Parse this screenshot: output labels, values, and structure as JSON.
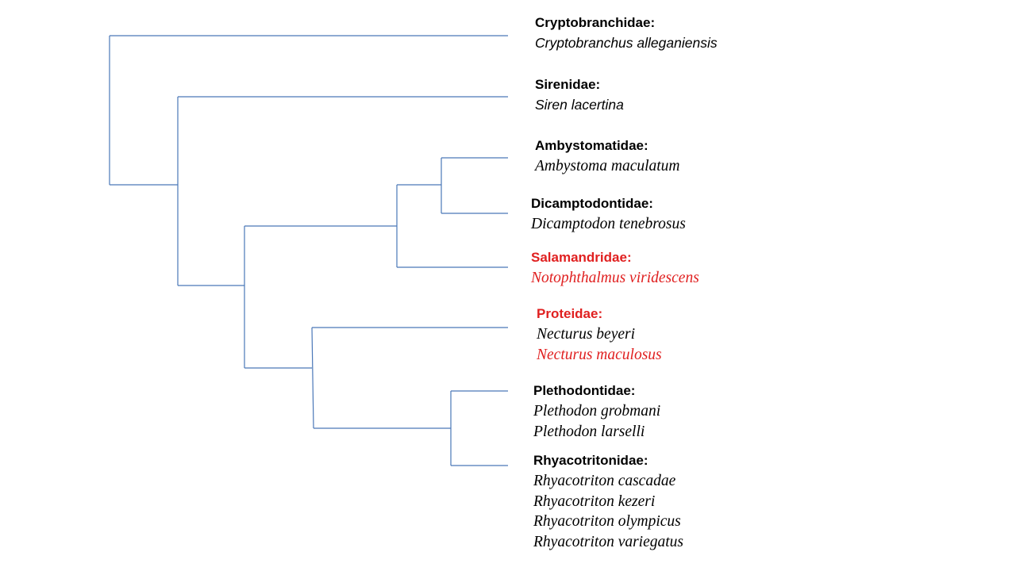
{
  "colors": {
    "branch": "#4a77b8",
    "text": "#000000",
    "highlight": "#e02020"
  },
  "taxa": [
    {
      "family": "Cryptobranchidae:",
      "family_highlight": false,
      "species": [
        {
          "name": "Cryptobranchus alleganiensis",
          "highlight": false
        }
      ]
    },
    {
      "family": "Sirenidae:",
      "family_highlight": false,
      "species": [
        {
          "name": "Siren lacertina",
          "highlight": false
        }
      ]
    },
    {
      "family": "Ambystomatidae:",
      "family_highlight": false,
      "species": [
        {
          "name": "Ambystoma maculatum",
          "highlight": false
        }
      ]
    },
    {
      "family": "Dicamptodontidae:",
      "family_highlight": false,
      "species": [
        {
          "name": "Dicamptodon tenebrosus",
          "highlight": false
        }
      ]
    },
    {
      "family": "Salamandridae:",
      "family_highlight": true,
      "species": [
        {
          "name": "Notophthalmus viridescens",
          "highlight": true
        }
      ]
    },
    {
      "family": "Proteidae:",
      "family_highlight": true,
      "species": [
        {
          "name": "Necturus beyeri",
          "highlight": false
        },
        {
          "name": "Necturus maculosus",
          "highlight": true
        }
      ]
    },
    {
      "family": "Plethodontidae:",
      "family_highlight": false,
      "species": [
        {
          "name": "Plethodon grobmani",
          "highlight": false
        },
        {
          "name": "Plethodon larselli",
          "highlight": false
        }
      ]
    },
    {
      "family": "Rhyacotritonidae:",
      "family_highlight": false,
      "species": [
        {
          "name": "Rhyacotriton cascadae",
          "highlight": false
        },
        {
          "name": "Rhyacotriton kezeri",
          "highlight": false
        },
        {
          "name": "Rhyacotriton olympicus",
          "highlight": false
        },
        {
          "name": "Rhyacotriton variegatus",
          "highlight": false
        }
      ]
    }
  ]
}
